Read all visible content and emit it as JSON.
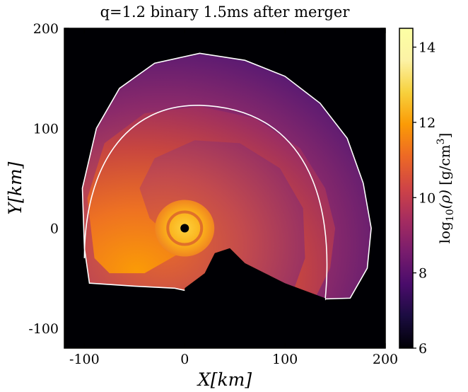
{
  "chart_data": {
    "type": "heatmap",
    "title": "q=1.2 binary 1.5ms after merger",
    "xlabel": "X[km]",
    "ylabel": "Y[km]",
    "xlim": [
      -120,
      200
    ],
    "ylim": [
      -120,
      200
    ],
    "x_ticks": [
      {
        "value": -100,
        "label": "-100"
      },
      {
        "value": 0,
        "label": "0"
      },
      {
        "value": 100,
        "label": "100"
      },
      {
        "value": 200,
        "label": "200"
      }
    ],
    "y_ticks": [
      {
        "value": -100,
        "label": "-100"
      },
      {
        "value": 0,
        "label": "0"
      },
      {
        "value": 100,
        "label": "100"
      },
      {
        "value": 200,
        "label": "200"
      }
    ],
    "grid": false,
    "colormap": "inferno",
    "colorbar": {
      "label": "log10(ρ) [g/cm3]",
      "label_parts": {
        "fn": "log",
        "sub": "10",
        "var": "(ρ)",
        "unit": "[g/cm",
        "sup": "3",
        "close": "]"
      },
      "range": [
        6,
        14.5
      ],
      "ticks": [
        {
          "value": 6,
          "label": "6"
        },
        {
          "value": 8,
          "label": "8"
        },
        {
          "value": 10,
          "label": "10"
        },
        {
          "value": 12,
          "label": "12"
        },
        {
          "value": 14,
          "label": "14"
        }
      ]
    },
    "remnant_center": [
      0,
      0
    ]
  }
}
